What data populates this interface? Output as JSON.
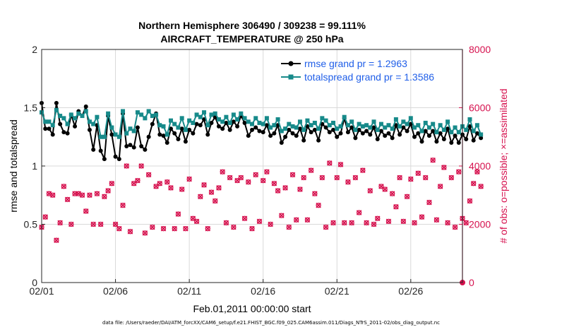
{
  "chart_data": {
    "type": "line",
    "title_line1": "Northern Hemisphere 306490 / 309238 = 99.111%",
    "title_line2": "AIRCRAFT_TEMPERATURE @ 250 hPa",
    "xlabel": "Feb.01,2011 00:00:00 start",
    "ylabel_left": "rmse and totalspread",
    "ylabel_right": "# of obs: o=possible; ×=assimilated",
    "xlim": [
      0,
      28.5
    ],
    "ylim_left": [
      0,
      2
    ],
    "ylim_right": [
      0,
      8000
    ],
    "x_ticks": [
      0,
      5,
      10,
      15,
      20,
      25
    ],
    "x_tick_labels": [
      "02/01",
      "02/06",
      "02/11",
      "02/16",
      "02/21",
      "02/26"
    ],
    "y_left_ticks": [
      0,
      0.5,
      1,
      1.5,
      2
    ],
    "y_left_tick_labels": [
      "0",
      "0.5",
      "1",
      "1.5",
      "2"
    ],
    "y_right_ticks": [
      0,
      2000,
      4000,
      6000,
      8000
    ],
    "y_right_tick_labels": [
      "0",
      "2000",
      "4000",
      "6000",
      "8000"
    ],
    "colors": {
      "rmse": "#000000",
      "spread": "#178a8a",
      "obs": "#d6114e",
      "legend_text": "#1f5ee8",
      "right_axis": "#d6114e"
    },
    "x_step_days": 0.25,
    "series": [
      {
        "name": "rmse grand pr = 1.2963",
        "key": "rmse",
        "values": [
          1.54,
          1.32,
          1.32,
          1.27,
          1.54,
          1.36,
          1.29,
          1.28,
          1.44,
          1.34,
          1.47,
          1.43,
          1.51,
          1.31,
          1.14,
          1.35,
          1.13,
          1.06,
          1.43,
          1.27,
          1.08,
          1.06,
          1.45,
          1.17,
          1.18,
          1.16,
          1.33,
          1.17,
          1.14,
          1.25,
          1.36,
          1.45,
          1.27,
          1.26,
          1.2,
          1.32,
          1.28,
          1.23,
          1.32,
          1.21,
          1.31,
          1.28,
          1.36,
          1.35,
          1.4,
          1.27,
          1.37,
          1.42,
          1.34,
          1.32,
          1.37,
          1.31,
          1.38,
          1.34,
          1.43,
          1.37,
          1.26,
          1.31,
          1.33,
          1.3,
          1.29,
          1.35,
          1.26,
          1.28,
          1.35,
          1.2,
          1.25,
          1.31,
          1.28,
          1.26,
          1.32,
          1.22,
          1.34,
          1.29,
          1.31,
          1.22,
          1.36,
          1.33,
          1.29,
          1.31,
          1.25,
          1.28,
          1.41,
          1.29,
          1.33,
          1.24,
          1.31,
          1.28,
          1.3,
          1.27,
          1.33,
          1.23,
          1.3,
          1.26,
          1.28,
          1.24,
          1.35,
          1.27,
          1.33,
          1.3,
          1.36,
          1.25,
          1.28,
          1.21,
          1.3,
          1.26,
          1.3,
          1.21,
          1.28,
          1.23,
          1.32,
          1.2,
          1.26,
          1.2,
          1.27,
          1.23,
          1.34,
          1.22,
          1.28,
          1.24
        ]
      },
      {
        "name": "totalspread grand pr = 1.3586",
        "key": "spread",
        "values": [
          1.46,
          1.38,
          1.38,
          1.35,
          1.48,
          1.43,
          1.41,
          1.36,
          1.44,
          1.41,
          1.45,
          1.43,
          1.47,
          1.38,
          1.36,
          1.42,
          1.25,
          1.25,
          1.45,
          1.33,
          1.27,
          1.25,
          1.47,
          1.28,
          1.32,
          1.3,
          1.46,
          1.44,
          1.41,
          1.47,
          1.43,
          1.44,
          1.35,
          1.34,
          1.27,
          1.39,
          1.36,
          1.33,
          1.41,
          1.31,
          1.39,
          1.37,
          1.44,
          1.42,
          1.46,
          1.35,
          1.44,
          1.45,
          1.4,
          1.38,
          1.42,
          1.37,
          1.44,
          1.4,
          1.45,
          1.41,
          1.38,
          1.36,
          1.41,
          1.37,
          1.36,
          1.41,
          1.33,
          1.35,
          1.4,
          1.3,
          1.32,
          1.36,
          1.34,
          1.33,
          1.38,
          1.31,
          1.39,
          1.35,
          1.37,
          1.32,
          1.41,
          1.39,
          1.35,
          1.37,
          1.32,
          1.34,
          1.42,
          1.35,
          1.38,
          1.31,
          1.36,
          1.34,
          1.35,
          1.33,
          1.38,
          1.31,
          1.36,
          1.33,
          1.35,
          1.32,
          1.4,
          1.34,
          1.38,
          1.36,
          1.41,
          1.33,
          1.35,
          1.3,
          1.37,
          1.33,
          1.36,
          1.29,
          1.35,
          1.31,
          1.38,
          1.29,
          1.33,
          1.29,
          1.34,
          1.31,
          1.4,
          1.3,
          1.35,
          1.27
        ]
      }
    ],
    "obs_possible": [
      1900,
      2250,
      3050,
      3000,
      1450,
      2050,
      3300,
      2850,
      2000,
      3050,
      3050,
      3000,
      2450,
      3000,
      2000,
      3050,
      2000,
      2950,
      3150,
      3400,
      2000,
      1850,
      2650,
      4000,
      1750,
      3400,
      3500,
      4000,
      1700,
      3700,
      1900,
      3300,
      3400,
      1850,
      3450,
      3250,
      1850,
      2350,
      3200,
      1850,
      3550,
      2200,
      2100,
      2950,
      3350,
      1850,
      3100,
      2800,
      3250,
      3800,
      2050,
      3600,
      1900,
      3500,
      3600,
      2200,
      3450,
      1850,
      3700,
      2100,
      3500,
      3800,
      2000,
      3400,
      3150,
      2300,
      3250,
      1900,
      3700,
      2150,
      3200,
      3600,
      2150,
      3850,
      3050,
      2650,
      3600,
      1900,
      4100,
      2050,
      3600,
      4050,
      2050,
      3450,
      2050,
      3600,
      2400,
      3850,
      2050,
      3150,
      2000,
      2200,
      3300,
      3200,
      2100,
      3050,
      2600,
      3600,
      2100,
      2950,
      3550,
      2050,
      3750,
      2250,
      3600,
      2750,
      4200,
      2150,
      3300,
      3950,
      2050,
      3600,
      1900,
      3800,
      2200,
      2050,
      2800,
      3400,
      3800,
      3300
    ]
  },
  "footer": {
    "data_file": "data file: /Users/raeder/DAI/ATM_forcXX/CAM6_setup/f.e21.FHIST_BGC.f09_025.CAM6assim.011/Diags_NTrS_2011-02/obs_diag_output.nc"
  }
}
